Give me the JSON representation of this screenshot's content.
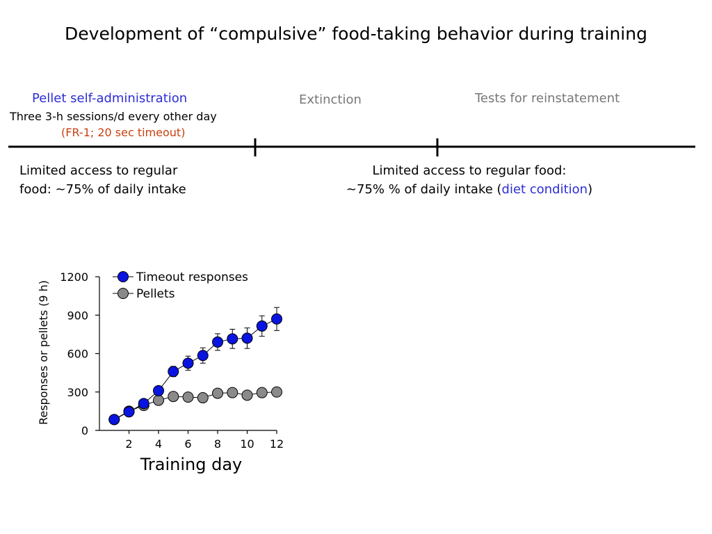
{
  "slide": {
    "title": "Development of “compulsive” food-taking behavior during training",
    "phases": {
      "self_admin_label": "Pellet self-administration",
      "self_admin_sessions": "Three 3-h sessions/d every other day",
      "self_admin_schedule": "(FR-1; 20 sec timeout)",
      "extinction_label": "Extinction",
      "reinstatement_label": "Tests for reinstatement"
    },
    "notes": {
      "left_line1": "Limited access to regular",
      "left_line2": "food: ~75% of daily intake",
      "right_line1": "Limited access to regular food:",
      "right_line2_pre": "~75% % of daily intake (",
      "right_line2_highlight": "diet condition",
      "right_line2_post": ")"
    }
  },
  "colors": {
    "blue_text": "#2d2dd6",
    "orange_text": "#c8400f",
    "gray_text": "#777777",
    "timeout_marker": "#0a14e0",
    "pellet_marker": "#8a8a8a"
  },
  "chart_data": {
    "type": "line",
    "xlabel": "Training day",
    "ylabel": "Responses or pellets (9 h)",
    "xlim": [
      0,
      12
    ],
    "ylim": [
      0,
      1200
    ],
    "xticks": [
      2,
      4,
      6,
      8,
      10,
      12
    ],
    "yticks": [
      0,
      300,
      600,
      900,
      1200
    ],
    "legend_position": "top-left",
    "grid": false,
    "series": [
      {
        "name": "Timeout responses",
        "color": "#0a14e0",
        "x": [
          1,
          2,
          3,
          4,
          5,
          6,
          7,
          8,
          9,
          10,
          11,
          12
        ],
        "y": [
          85,
          145,
          210,
          310,
          460,
          525,
          585,
          690,
          715,
          720,
          815,
          870
        ],
        "err": [
          10,
          15,
          20,
          25,
          40,
          55,
          60,
          65,
          75,
          80,
          80,
          90
        ]
      },
      {
        "name": "Pellets",
        "color": "#8a8a8a",
        "x": [
          1,
          2,
          3,
          4,
          5,
          6,
          7,
          8,
          9,
          10,
          11,
          12
        ],
        "y": [
          85,
          150,
          195,
          235,
          265,
          260,
          255,
          290,
          295,
          275,
          295,
          300
        ],
        "err": [
          5,
          8,
          10,
          12,
          12,
          12,
          12,
          12,
          12,
          12,
          12,
          12
        ]
      }
    ]
  }
}
